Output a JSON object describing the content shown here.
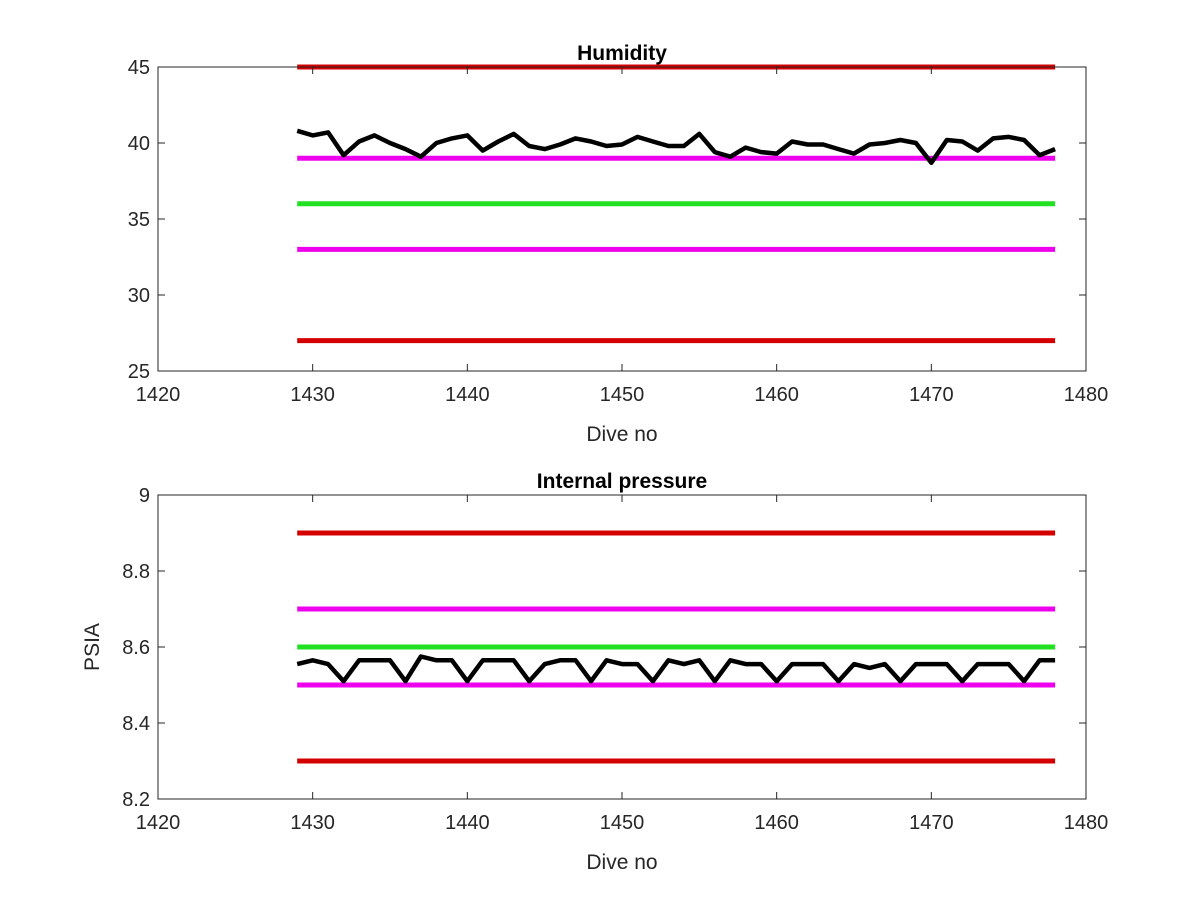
{
  "chart_data": [
    {
      "type": "line",
      "title": "Humidity",
      "xlabel": "Dive no",
      "ylabel": "",
      "xlim": [
        1420,
        1480
      ],
      "ylim": [
        25,
        45
      ],
      "xticks": [
        "1420",
        "1430",
        "1440",
        "1450",
        "1460",
        "1470",
        "1480"
      ],
      "yticks": [
        "25",
        "30",
        "35",
        "40",
        "45"
      ],
      "grid": false,
      "series": [
        {
          "color": "#d40000",
          "x": [
            1429,
            1478
          ],
          "y": [
            45,
            45
          ]
        },
        {
          "color": "#ee00ee",
          "x": [
            1429,
            1478
          ],
          "y": [
            39,
            39
          ]
        },
        {
          "color": "#22e022",
          "x": [
            1429,
            1478
          ],
          "y": [
            36,
            36
          ]
        },
        {
          "color": "#ee00ee",
          "x": [
            1429,
            1478
          ],
          "y": [
            33,
            33
          ]
        },
        {
          "color": "#d40000",
          "x": [
            1429,
            1478
          ],
          "y": [
            27,
            27
          ]
        },
        {
          "color": "#000000",
          "x": [
            1429,
            1430,
            1431,
            1432,
            1433,
            1434,
            1435,
            1436,
            1437,
            1438,
            1439,
            1440,
            1441,
            1442,
            1443,
            1444,
            1445,
            1446,
            1447,
            1448,
            1449,
            1450,
            1451,
            1452,
            1453,
            1454,
            1455,
            1456,
            1457,
            1458,
            1459,
            1460,
            1461,
            1462,
            1463,
            1464,
            1465,
            1466,
            1467,
            1468,
            1469,
            1470,
            1471,
            1472,
            1473,
            1474,
            1475,
            1476,
            1477,
            1478
          ],
          "y": [
            40.8,
            40.5,
            40.7,
            39.2,
            40.1,
            40.5,
            40.0,
            39.6,
            39.1,
            40.0,
            40.3,
            40.5,
            39.5,
            40.1,
            40.6,
            39.8,
            39.6,
            39.9,
            40.3,
            40.1,
            39.8,
            39.9,
            40.4,
            40.1,
            39.8,
            39.8,
            40.6,
            39.4,
            39.1,
            39.7,
            39.4,
            39.3,
            40.1,
            39.9,
            39.9,
            39.6,
            39.3,
            39.9,
            40.0,
            40.2,
            40.0,
            38.7,
            40.2,
            40.1,
            39.5,
            40.3,
            40.4,
            40.2,
            39.2,
            39.6
          ]
        }
      ]
    },
    {
      "type": "line",
      "title": "Internal pressure",
      "xlabel": "Dive no",
      "ylabel": "PSIA",
      "xlim": [
        1420,
        1480
      ],
      "ylim": [
        8.2,
        9
      ],
      "xticks": [
        "1420",
        "1430",
        "1440",
        "1450",
        "1460",
        "1470",
        "1480"
      ],
      "yticks": [
        "8.2",
        "8.4",
        "8.6",
        "8.8",
        "9"
      ],
      "grid": false,
      "series": [
        {
          "color": "#d40000",
          "x": [
            1429,
            1478
          ],
          "y": [
            8.9,
            8.9
          ]
        },
        {
          "color": "#ee00ee",
          "x": [
            1429,
            1478
          ],
          "y": [
            8.7,
            8.7
          ]
        },
        {
          "color": "#22e022",
          "x": [
            1429,
            1478
          ],
          "y": [
            8.6,
            8.6
          ]
        },
        {
          "color": "#ee00ee",
          "x": [
            1429,
            1478
          ],
          "y": [
            8.5,
            8.5
          ]
        },
        {
          "color": "#d40000",
          "x": [
            1429,
            1478
          ],
          "y": [
            8.3,
            8.3
          ]
        },
        {
          "color": "#000000",
          "x": [
            1429,
            1430,
            1431,
            1432,
            1433,
            1434,
            1435,
            1436,
            1437,
            1438,
            1439,
            1440,
            1441,
            1442,
            1443,
            1444,
            1445,
            1446,
            1447,
            1448,
            1449,
            1450,
            1451,
            1452,
            1453,
            1454,
            1455,
            1456,
            1457,
            1458,
            1459,
            1460,
            1461,
            1462,
            1463,
            1464,
            1465,
            1466,
            1467,
            1468,
            1469,
            1470,
            1471,
            1472,
            1473,
            1474,
            1475,
            1476,
            1477,
            1478
          ],
          "y": [
            8.555,
            8.565,
            8.555,
            8.51,
            8.565,
            8.565,
            8.565,
            8.51,
            8.575,
            8.565,
            8.565,
            8.51,
            8.565,
            8.565,
            8.565,
            8.51,
            8.555,
            8.565,
            8.565,
            8.51,
            8.565,
            8.555,
            8.555,
            8.51,
            8.565,
            8.555,
            8.565,
            8.51,
            8.565,
            8.555,
            8.555,
            8.51,
            8.555,
            8.555,
            8.555,
            8.51,
            8.555,
            8.545,
            8.555,
            8.51,
            8.555,
            8.555,
            8.555,
            8.51,
            8.555,
            8.555,
            8.555,
            8.51,
            8.565,
            8.565
          ]
        }
      ]
    }
  ]
}
